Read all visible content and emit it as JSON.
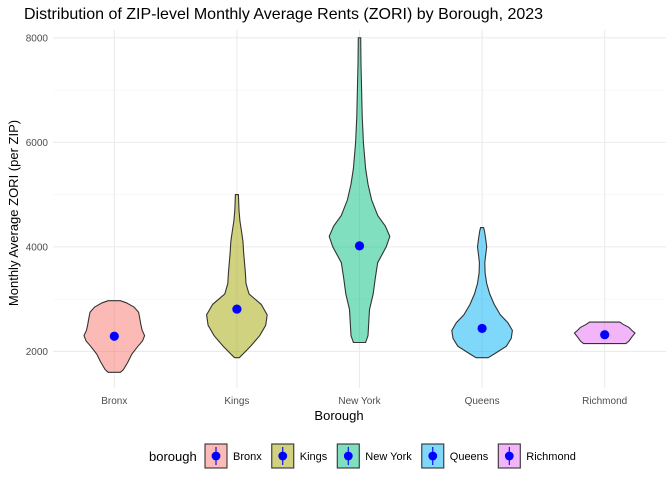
{
  "chart_data": {
    "type": "violin",
    "title": "Distribution of ZIP-level Monthly Average Rents (ZORI) by Borough, 2023",
    "xlabel": "Borough",
    "ylabel": "Monthly Average ZORI (per ZIP)",
    "ylim": [
      1300,
      8150
    ],
    "yticks": [
      2000,
      4000,
      6000,
      8000
    ],
    "ytick_labels": [
      "2000",
      "4000",
      "6000",
      "8000"
    ],
    "grid": true,
    "categories": [
      "Bronx",
      "Kings",
      "New York",
      "Queens",
      "Richmond"
    ],
    "colors": [
      "#F8766D",
      "#A3A500",
      "#00BF7D",
      "#00B0F6",
      "#E76BF3"
    ],
    "mean_color": "#0000FF",
    "series": [
      {
        "name": "Bronx",
        "mean": 2290,
        "density": [
          [
            1600,
            0.2
          ],
          [
            1650,
            0.3
          ],
          [
            1800,
            0.45
          ],
          [
            1950,
            0.58
          ],
          [
            2100,
            0.78
          ],
          [
            2200,
            0.93
          ],
          [
            2300,
            1.0
          ],
          [
            2400,
            0.92
          ],
          [
            2500,
            0.88
          ],
          [
            2600,
            0.85
          ],
          [
            2750,
            0.8
          ],
          [
            2850,
            0.65
          ],
          [
            2930,
            0.4
          ],
          [
            2970,
            0.2
          ]
        ]
      },
      {
        "name": "Kings",
        "mean": 2810,
        "density": [
          [
            1880,
            0.08
          ],
          [
            1950,
            0.2
          ],
          [
            2100,
            0.45
          ],
          [
            2300,
            0.75
          ],
          [
            2500,
            0.95
          ],
          [
            2700,
            1.0
          ],
          [
            2900,
            0.8
          ],
          [
            3100,
            0.4
          ],
          [
            3300,
            0.3
          ],
          [
            3500,
            0.28
          ],
          [
            3700,
            0.25
          ],
          [
            3900,
            0.22
          ],
          [
            4100,
            0.2
          ],
          [
            4300,
            0.15
          ],
          [
            4500,
            0.1
          ],
          [
            4700,
            0.07
          ],
          [
            5000,
            0.05
          ]
        ]
      },
      {
        "name": "New York",
        "mean": 4020,
        "density": [
          [
            2170,
            0.2
          ],
          [
            2300,
            0.28
          ],
          [
            2500,
            0.3
          ],
          [
            2800,
            0.33
          ],
          [
            3100,
            0.45
          ],
          [
            3400,
            0.52
          ],
          [
            3700,
            0.6
          ],
          [
            4000,
            0.88
          ],
          [
            4200,
            1.0
          ],
          [
            4400,
            0.85
          ],
          [
            4600,
            0.6
          ],
          [
            4900,
            0.4
          ],
          [
            5200,
            0.28
          ],
          [
            5500,
            0.2
          ],
          [
            6000,
            0.13
          ],
          [
            6500,
            0.09
          ],
          [
            7000,
            0.07
          ],
          [
            7500,
            0.05
          ],
          [
            8000,
            0.04
          ]
        ]
      },
      {
        "name": "Queens",
        "mean": 2440,
        "density": [
          [
            1880,
            0.2
          ],
          [
            1950,
            0.4
          ],
          [
            2100,
            0.8
          ],
          [
            2250,
            0.96
          ],
          [
            2400,
            1.0
          ],
          [
            2550,
            0.85
          ],
          [
            2700,
            0.6
          ],
          [
            2900,
            0.4
          ],
          [
            3100,
            0.25
          ],
          [
            3300,
            0.15
          ],
          [
            3500,
            0.1
          ],
          [
            3700,
            0.09
          ],
          [
            3850,
            0.12
          ],
          [
            4000,
            0.15
          ],
          [
            4150,
            0.12
          ],
          [
            4300,
            0.08
          ],
          [
            4370,
            0.05
          ]
        ]
      },
      {
        "name": "Richmond",
        "mean": 2320,
        "density": [
          [
            2150,
            0.7
          ],
          [
            2200,
            0.8
          ],
          [
            2280,
            0.9
          ],
          [
            2350,
            1.0
          ],
          [
            2400,
            0.9
          ],
          [
            2460,
            0.8
          ],
          [
            2520,
            0.6
          ],
          [
            2560,
            0.5
          ]
        ]
      }
    ]
  },
  "legend": {
    "title": "borough",
    "placement": "bottom",
    "items": [
      "Bronx",
      "Kings",
      "New York",
      "Queens",
      "Richmond"
    ]
  }
}
